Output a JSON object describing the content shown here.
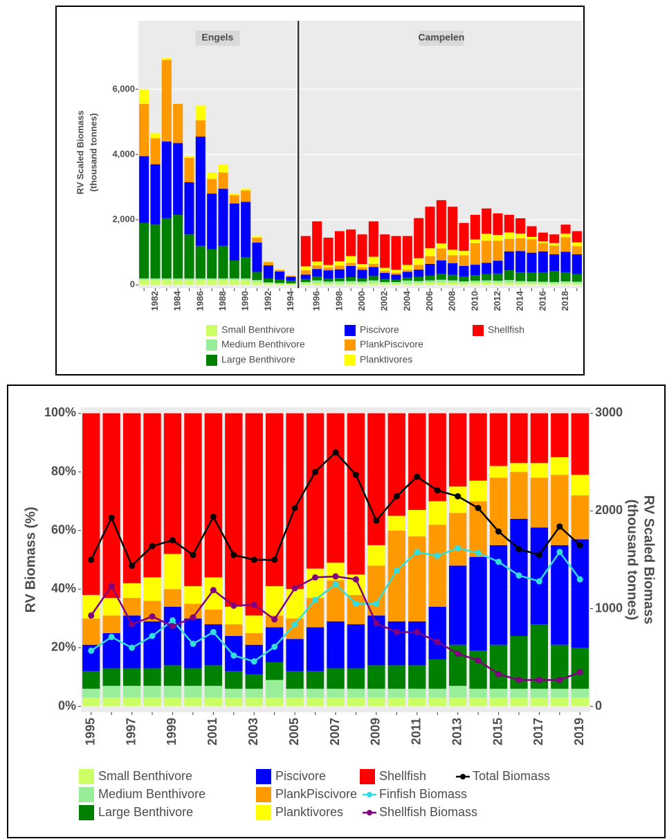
{
  "chart_data": [
    {
      "type": "bar",
      "stacked": true,
      "y_label": [
        "RV Scaled Biomass",
        "(thousand tonnes)"
      ],
      "facets": [
        {
          "label": "Engels",
          "categories": [
            null,
            "1982",
            null,
            "1984",
            null,
            "1986",
            null,
            "1988",
            null,
            "1990",
            null,
            "1992",
            null,
            "1994"
          ]
        },
        {
          "label": "Campelen",
          "categories": [
            null,
            "1996",
            null,
            "1998",
            null,
            "2000",
            null,
            "2002",
            null,
            "2004",
            null,
            "2006",
            null,
            "2008",
            null,
            "2010",
            null,
            "2012",
            null,
            "2014",
            null,
            "2016",
            null,
            "2018",
            null
          ]
        }
      ],
      "ylim": [
        -100,
        8100
      ],
      "yticks": [
        0,
        {
          "value": 2000,
          "label": "2,000"
        },
        {
          "value": 4000,
          "label": "4,000"
        },
        {
          "value": 6000,
          "label": "6,000"
        }
      ],
      "grid": true,
      "series": [
        {
          "name": "Small Benthivore",
          "color": "#ccff66",
          "values": [
            150,
            150,
            150,
            150,
            150,
            150,
            150,
            150,
            150,
            150,
            100,
            50,
            40,
            30,
            45,
            60,
            45,
            50,
            50,
            45,
            60,
            45,
            45,
            45,
            60,
            70,
            80,
            70,
            55,
            65,
            70,
            65,
            65,
            60,
            55,
            50,
            45,
            55,
            50
          ]
        },
        {
          "name": "Medium Benthivore",
          "color": "#99ee99",
          "values": [
            50,
            50,
            50,
            50,
            50,
            50,
            50,
            50,
            50,
            50,
            50,
            30,
            20,
            20,
            45,
            80,
            60,
            65,
            70,
            60,
            80,
            45,
            45,
            90,
            60,
            70,
            80,
            70,
            55,
            65,
            70,
            65,
            85,
            60,
            55,
            50,
            45,
            55,
            50
          ]
        },
        {
          "name": "Large Benthivore",
          "color": "#008000",
          "values": [
            1700,
            1650,
            1850,
            1950,
            1350,
            1000,
            900,
            1000,
            550,
            650,
            250,
            120,
            100,
            80,
            90,
            115,
            85,
            100,
            120,
            95,
            135,
            95,
            75,
            90,
            125,
            145,
            180,
            170,
            150,
            170,
            190,
            220,
            300,
            265,
            270,
            290,
            340,
            280,
            230
          ]
        },
        {
          "name": "Piscivore",
          "color": "#0000ff",
          "values": [
            2050,
            1850,
            2350,
            2200,
            1600,
            3350,
            1700,
            1750,
            1750,
            1700,
            900,
            400,
            250,
            120,
            135,
            235,
            260,
            265,
            340,
            265,
            275,
            185,
            150,
            180,
            225,
            360,
            415,
            360,
            325,
            320,
            350,
            395,
            580,
            655,
            610,
            640,
            510,
            630,
            610
          ]
        },
        {
          "name": "PlankPiscivore",
          "color": "#ff9900",
          "values": [
            1600,
            800,
            2500,
            1200,
            750,
            500,
            450,
            500,
            250,
            350,
            150,
            100,
            50,
            30,
            135,
            115,
            85,
            115,
            100,
            80,
            100,
            60,
            60,
            60,
            145,
            240,
            365,
            240,
            325,
            665,
            680,
            615,
            385,
            390,
            415,
            255,
            265,
            445,
            250
          ]
        },
        {
          "name": "Planktivores",
          "color": "#ffff00",
          "values": [
            450,
            150,
            50,
            20,
            50,
            450,
            200,
            250,
            50,
            50,
            50,
            20,
            20,
            10,
            120,
            115,
            75,
            130,
            205,
            95,
            215,
            95,
            90,
            150,
            205,
            240,
            155,
            170,
            135,
            110,
            210,
            175,
            195,
            145,
            70,
            50,
            80,
            110,
            115
          ]
        },
        {
          "name": "Shellfish",
          "color": "#ff0000",
          "values": [
            0,
            0,
            0,
            0,
            0,
            0,
            0,
            0,
            0,
            0,
            0,
            0,
            0,
            0,
            930,
            1230,
            840,
            925,
            815,
            910,
            1085,
            1025,
            1035,
            885,
            1230,
            1275,
            1325,
            1320,
            855,
            755,
            775,
            660,
            540,
            470,
            325,
            270,
            265,
            275,
            345
          ]
        }
      ]
    },
    {
      "type": "bar",
      "stacked": true,
      "y_label": "RV Biomass (%)",
      "y2_label": [
        "RV Scaled Biomass",
        "(thousand tonnes)"
      ],
      "categories": [
        "1995",
        null,
        "1997",
        null,
        "1999",
        null,
        "2001",
        null,
        "2003",
        null,
        "2005",
        null,
        "2007",
        null,
        "2009",
        null,
        "2011",
        null,
        "2013",
        null,
        "2015",
        null,
        "2017",
        null,
        "2019"
      ],
      "ylim": [
        -2,
        102
      ],
      "yticks": [
        {
          "value": 0,
          "label": "0%"
        },
        {
          "value": 20,
          "label": "20%"
        },
        {
          "value": 40,
          "label": "40%"
        },
        {
          "value": 60,
          "label": "60%"
        },
        {
          "value": 80,
          "label": "80%"
        },
        {
          "value": 100,
          "label": "100%"
        }
      ],
      "y2lim": [
        -60,
        3060
      ],
      "y2ticks": [
        0,
        1000,
        2000,
        3000
      ],
      "grid": true,
      "series": [
        {
          "name": "Small Benthivore",
          "color": "#ccff66",
          "values": [
            3,
            3,
            3,
            3,
            3,
            3,
            3,
            3,
            3,
            3,
            3,
            3,
            3,
            3,
            3,
            3,
            3,
            3,
            3,
            3,
            3,
            3,
            3,
            3,
            3
          ]
        },
        {
          "name": "Medium Benthivore",
          "color": "#99ee99",
          "values": [
            3,
            4,
            4,
            4,
            4,
            4,
            4,
            3,
            3,
            6,
            3,
            3,
            3,
            3,
            3,
            3,
            3,
            3,
            4,
            3,
            3,
            3,
            3,
            3,
            3
          ]
        },
        {
          "name": "Large Benthivore",
          "color": "#008000",
          "values": [
            6,
            6,
            6,
            6,
            7,
            6,
            7,
            6,
            5,
            6,
            6,
            6,
            7,
            7,
            8,
            8,
            8,
            10,
            14,
            13,
            15,
            18,
            22,
            15,
            14
          ]
        },
        {
          "name": "Piscivore",
          "color": "#0000ff",
          "values": [
            9,
            12,
            18,
            16,
            20,
            17,
            14,
            12,
            10,
            12,
            11,
            15,
            16,
            15,
            17,
            15,
            15,
            18,
            27,
            32,
            34,
            40,
            33,
            34,
            37
          ]
        },
        {
          "name": "PlankPiscivore",
          "color": "#ff9900",
          "values": [
            9,
            6,
            6,
            7,
            6,
            5,
            5,
            4,
            4,
            4,
            7,
            10,
            14,
            10,
            17,
            31,
            29,
            28,
            18,
            19,
            23,
            16,
            17,
            24,
            15
          ]
        },
        {
          "name": "Planktivores",
          "color": "#ffff00",
          "values": [
            8,
            6,
            5,
            8,
            12,
            6,
            11,
            6,
            6,
            10,
            10,
            10,
            6,
            7,
            7,
            5,
            9,
            8,
            9,
            7,
            4,
            3,
            5,
            6,
            7
          ]
        },
        {
          "name": "Shellfish",
          "color": "#ff0000",
          "values": [
            62,
            63,
            58,
            56,
            48,
            59,
            56,
            66,
            69,
            59,
            60,
            53,
            51,
            55,
            45,
            35,
            33,
            30,
            25,
            23,
            18,
            17,
            17,
            15,
            21
          ]
        },
        {
          "name": "Finfish Biomass",
          "color": "#33dddd",
          "axis": "y2",
          "values": [
            570,
            710,
            600,
            720,
            880,
            640,
            760,
            520,
            460,
            610,
            840,
            1090,
            1250,
            1050,
            1050,
            1390,
            1580,
            1540,
            1620,
            1570,
            1480,
            1340,
            1280,
            1580,
            1300
          ]
        },
        {
          "name": "Shellfish Biomass",
          "color": "#800080",
          "axis": "y2",
          "values": [
            930,
            1230,
            840,
            920,
            820,
            910,
            1190,
            1030,
            1040,
            890,
            1210,
            1320,
            1330,
            1300,
            850,
            760,
            760,
            660,
            540,
            470,
            330,
            270,
            270,
            270,
            350
          ]
        },
        {
          "name": "Total Biomass",
          "color": "#000000",
          "axis": "y2",
          "values": [
            1500,
            1930,
            1440,
            1640,
            1700,
            1550,
            1940,
            1550,
            1500,
            1500,
            2030,
            2400,
            2600,
            2370,
            1900,
            2150,
            2350,
            2210,
            2150,
            2030,
            1790,
            1610,
            1550,
            1840,
            1650
          ]
        }
      ]
    }
  ]
}
